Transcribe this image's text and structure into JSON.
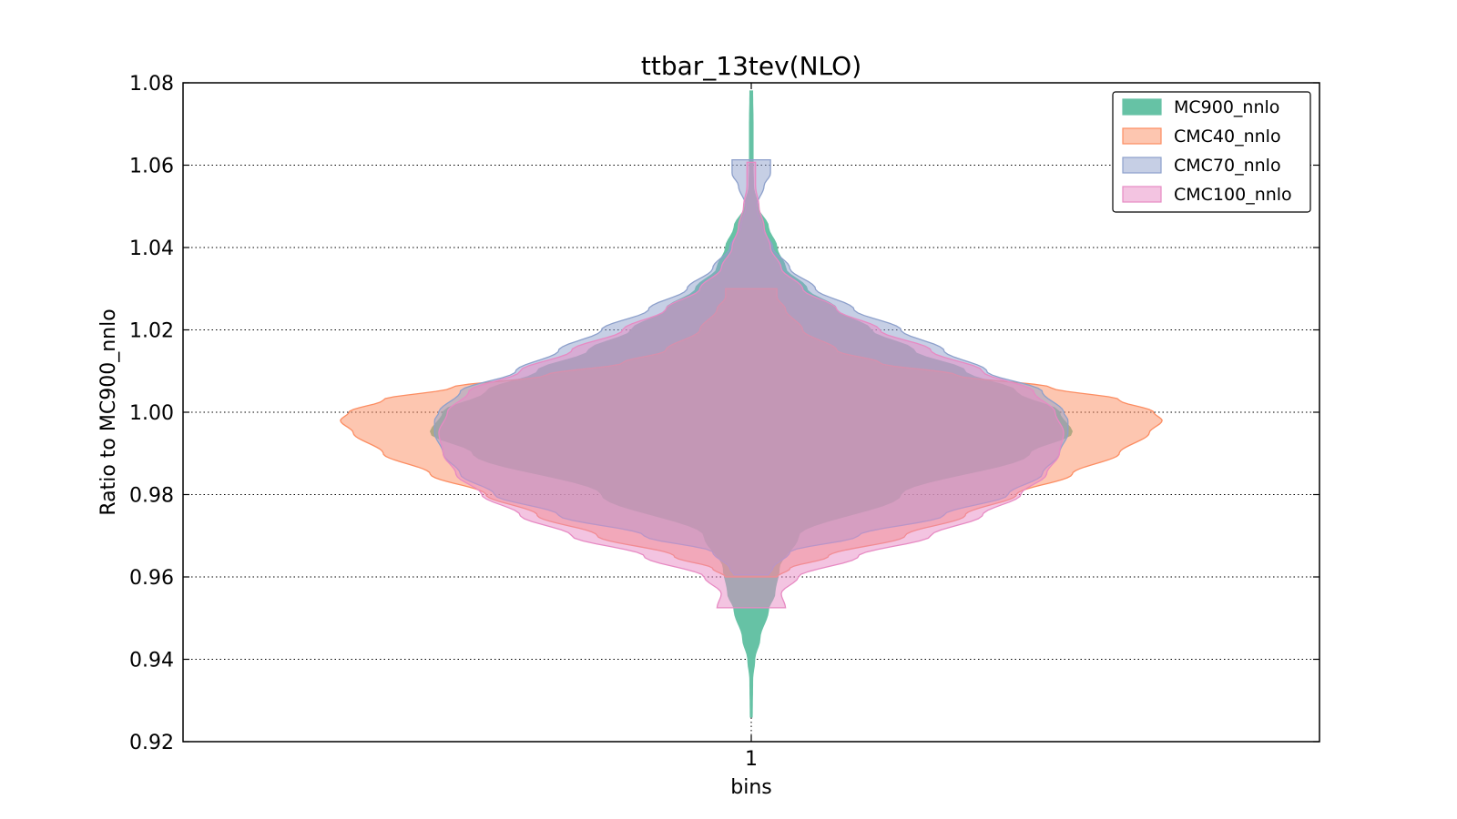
{
  "chart_data": {
    "type": "violin",
    "title": "ttbar_13tev(NLO)",
    "xlabel": "bins",
    "ylabel": "Ratio to MC900_nnlo",
    "categories": [
      "1"
    ],
    "ylim": [
      0.92,
      1.08
    ],
    "yticks": [
      "0.92",
      "0.94",
      "0.96",
      "0.98",
      "1.00",
      "1.02",
      "1.04",
      "1.06",
      "1.08"
    ],
    "grid": true,
    "legend_position": "top-right",
    "series": [
      {
        "name": "MC900_nnlo",
        "color": "#66c2a5",
        "min": 0.926,
        "max": 1.078,
        "profile": [
          [
            0.926,
            0.002
          ],
          [
            0.935,
            0.003
          ],
          [
            0.94,
            0.008
          ],
          [
            0.945,
            0.02
          ],
          [
            0.952,
            0.04
          ],
          [
            0.956,
            0.055
          ],
          [
            0.962,
            0.065
          ],
          [
            0.97,
            0.11
          ],
          [
            0.98,
            0.35
          ],
          [
            0.99,
            0.65
          ],
          [
            0.995,
            0.75
          ],
          [
            1.0,
            0.72
          ],
          [
            1.005,
            0.62
          ],
          [
            1.01,
            0.5
          ],
          [
            1.015,
            0.38
          ],
          [
            1.02,
            0.28
          ],
          [
            1.025,
            0.2
          ],
          [
            1.03,
            0.13
          ],
          [
            1.035,
            0.08
          ],
          [
            1.04,
            0.06
          ],
          [
            1.045,
            0.04
          ],
          [
            1.05,
            0.015
          ],
          [
            1.055,
            0.005
          ],
          [
            1.06,
            0.004
          ],
          [
            1.07,
            0.004
          ],
          [
            1.078,
            0.003
          ]
        ]
      },
      {
        "name": "CMC40_nnlo",
        "color": "#fc8d62",
        "min": 0.96,
        "max": 1.03,
        "profile": [
          [
            0.96,
            0.06
          ],
          [
            0.962,
            0.09
          ],
          [
            0.965,
            0.18
          ],
          [
            0.97,
            0.36
          ],
          [
            0.975,
            0.5
          ],
          [
            0.98,
            0.62
          ],
          [
            0.985,
            0.75
          ],
          [
            0.99,
            0.86
          ],
          [
            0.995,
            0.93
          ],
          [
            0.998,
            0.96
          ],
          [
            1.0,
            0.94
          ],
          [
            1.003,
            0.86
          ],
          [
            1.006,
            0.7
          ],
          [
            1.009,
            0.48
          ],
          [
            1.012,
            0.3
          ],
          [
            1.015,
            0.2
          ],
          [
            1.02,
            0.12
          ],
          [
            1.025,
            0.08
          ],
          [
            1.028,
            0.06
          ],
          [
            1.03,
            0.06
          ]
        ]
      },
      {
        "name": "CMC70_nnlo",
        "color": "#8da0cb",
        "min": 0.9605,
        "max": 1.0613,
        "profile": [
          [
            0.9605,
            0.04
          ],
          [
            0.962,
            0.05
          ],
          [
            0.966,
            0.09
          ],
          [
            0.97,
            0.25
          ],
          [
            0.975,
            0.45
          ],
          [
            0.98,
            0.6
          ],
          [
            0.985,
            0.68
          ],
          [
            0.99,
            0.72
          ],
          [
            0.995,
            0.74
          ],
          [
            0.998,
            0.74
          ],
          [
            1.0,
            0.73
          ],
          [
            1.005,
            0.68
          ],
          [
            1.01,
            0.55
          ],
          [
            1.015,
            0.45
          ],
          [
            1.02,
            0.35
          ],
          [
            1.025,
            0.24
          ],
          [
            1.03,
            0.15
          ],
          [
            1.035,
            0.09
          ],
          [
            1.04,
            0.05
          ],
          [
            1.045,
            0.025
          ],
          [
            1.05,
            0.012
          ],
          [
            1.055,
            0.03
          ],
          [
            1.058,
            0.045
          ],
          [
            1.0613,
            0.045
          ]
        ]
      },
      {
        "name": "CMC100_nnlo",
        "color": "#e78ac3",
        "min": 0.9525,
        "max": 1.0607,
        "profile": [
          [
            0.9525,
            0.08
          ],
          [
            0.956,
            0.07
          ],
          [
            0.96,
            0.11
          ],
          [
            0.965,
            0.25
          ],
          [
            0.97,
            0.42
          ],
          [
            0.975,
            0.54
          ],
          [
            0.98,
            0.63
          ],
          [
            0.985,
            0.69
          ],
          [
            0.99,
            0.72
          ],
          [
            0.995,
            0.73
          ],
          [
            1.0,
            0.71
          ],
          [
            1.005,
            0.66
          ],
          [
            1.01,
            0.54
          ],
          [
            1.015,
            0.42
          ],
          [
            1.02,
            0.3
          ],
          [
            1.025,
            0.2
          ],
          [
            1.03,
            0.12
          ],
          [
            1.035,
            0.07
          ],
          [
            1.04,
            0.045
          ],
          [
            1.045,
            0.03
          ],
          [
            1.05,
            0.018
          ],
          [
            1.055,
            0.01
          ],
          [
            1.06,
            0.01
          ],
          [
            1.0607,
            0.01
          ]
        ]
      }
    ]
  }
}
